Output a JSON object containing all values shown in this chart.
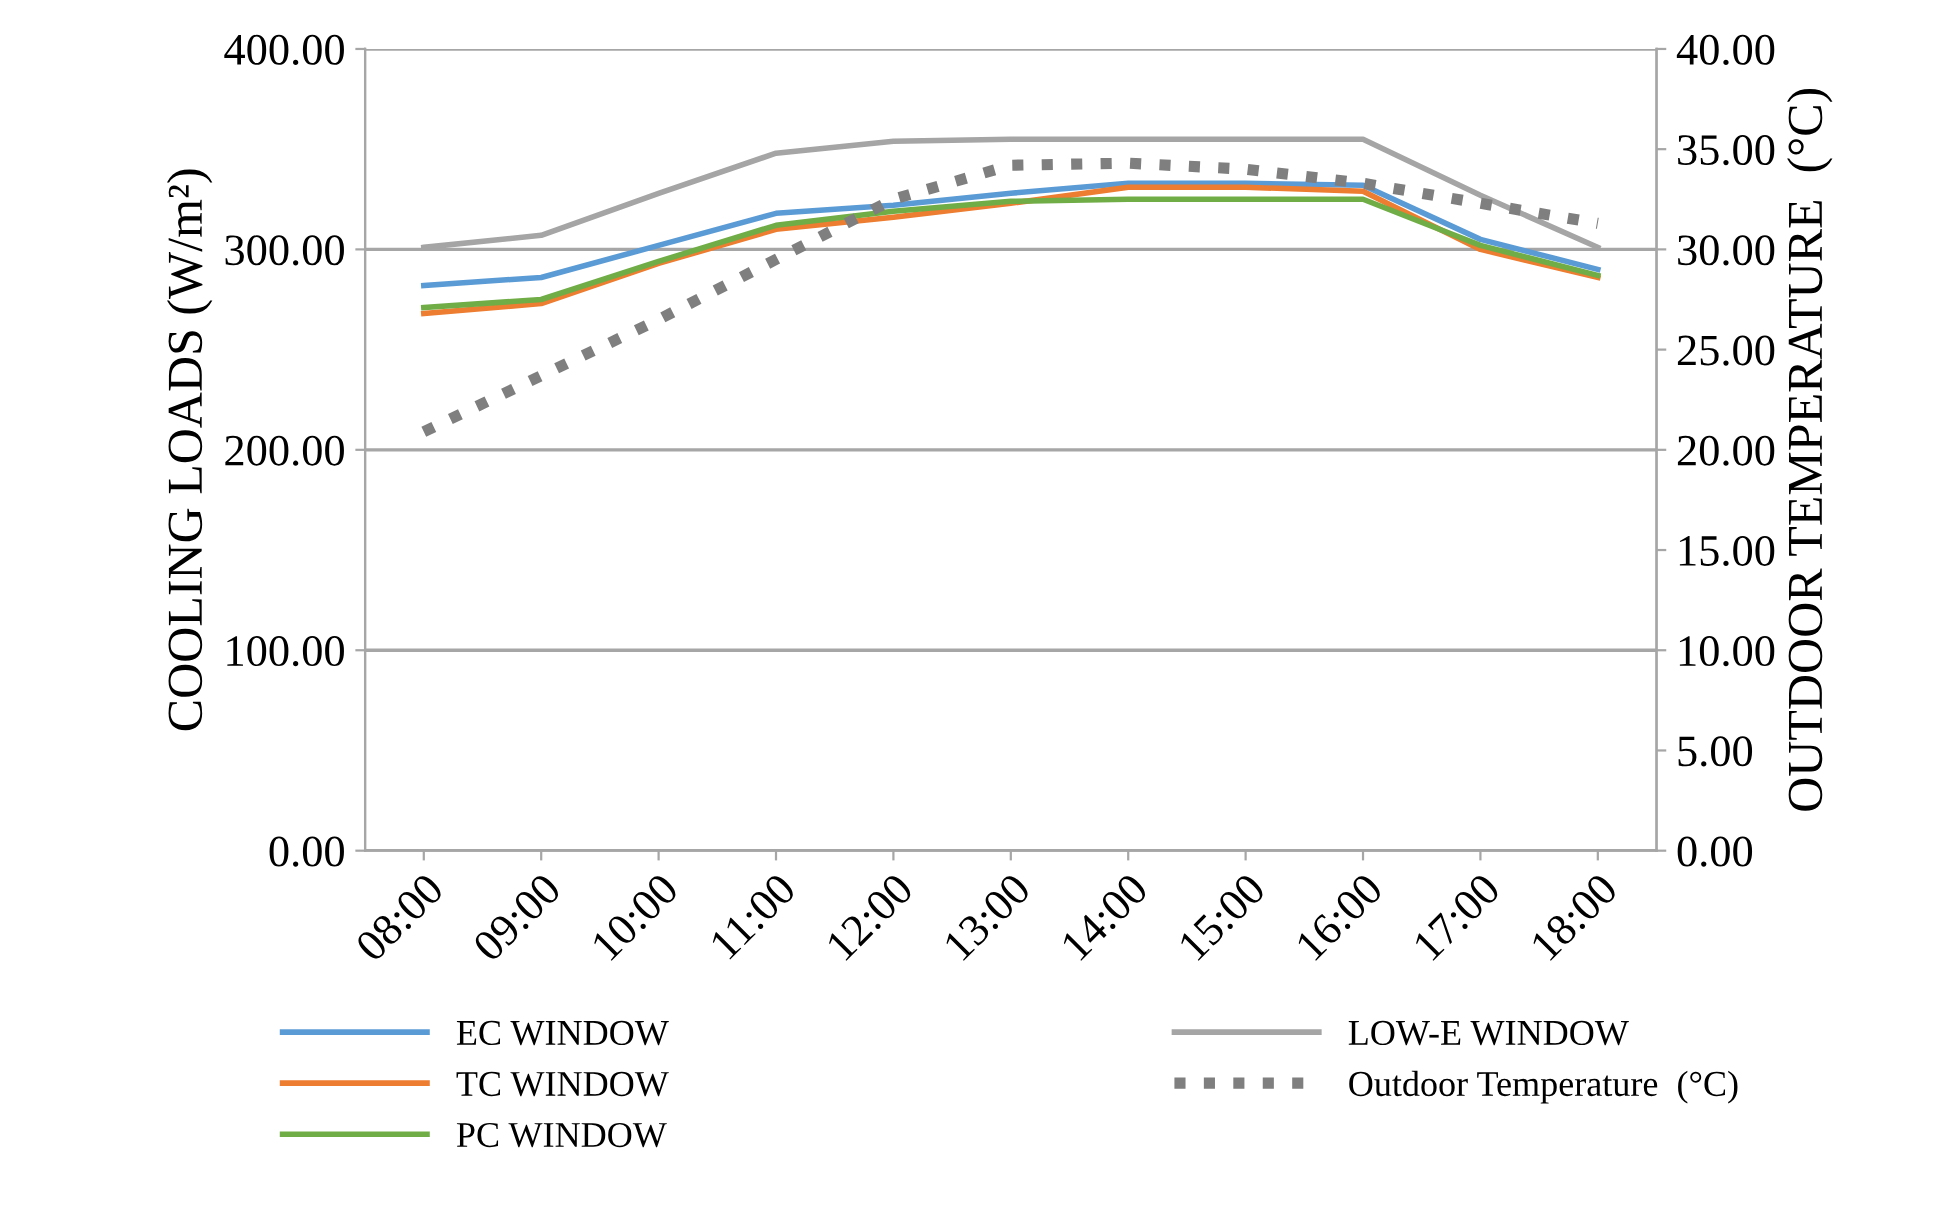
{
  "chart_data": {
    "type": "line",
    "ylabel": "COOLING LOADS (W/m²)",
    "y2label": "OUTDOOR TEMPERATURE  (°C)",
    "categories": [
      "08:00",
      "09:00",
      "10:00",
      "11:00",
      "12:00",
      "13:00",
      "14:00",
      "15:00",
      "16:00",
      "17:00",
      "18:00"
    ],
    "series": [
      {
        "name": "EC WINDOW",
        "color": "#5b9bd5",
        "values": [
          282,
          286,
          302,
          318,
          322,
          328,
          333,
          333,
          332,
          305,
          290
        ]
      },
      {
        "name": "TC WINDOW",
        "color": "#ed7d31",
        "values": [
          268,
          273,
          293,
          310,
          316,
          323,
          331,
          331,
          329,
          300,
          286
        ]
      },
      {
        "name": "PC WINDOW",
        "color": "#70ad47",
        "values": [
          271,
          275,
          294,
          312,
          319,
          324,
          325,
          325,
          325,
          302,
          287
        ]
      },
      {
        "name": "LOW-E WINDOW",
        "color": "#a5a5a5",
        "values": [
          301,
          307,
          328,
          348,
          354,
          355,
          355,
          355,
          355,
          327,
          301
        ]
      },
      {
        "name": "Outdoor Temperature  (°C)",
        "color": "#7f7f7f",
        "axis": "y2",
        "line_style": "dotted",
        "values": [
          20.9,
          23.7,
          26.5,
          29.5,
          32.5,
          34.2,
          34.3,
          34.0,
          33.3,
          32.3,
          31.3
        ]
      }
    ],
    "ylim": [
      0,
      400
    ],
    "yticks": [
      {
        "value": 0,
        "label": "0.00"
      },
      {
        "value": 100,
        "label": "100.00"
      },
      {
        "value": 200,
        "label": "200.00"
      },
      {
        "value": 300,
        "label": "300.00"
      },
      {
        "value": 400,
        "label": "400.00"
      }
    ],
    "y2lim": [
      0,
      40
    ],
    "y2ticks": [
      {
        "value": 0,
        "label": "0.00"
      },
      {
        "value": 5,
        "label": "5.00"
      },
      {
        "value": 10,
        "label": "10.00"
      },
      {
        "value": 15,
        "label": "15.00"
      },
      {
        "value": 20,
        "label": "20.00"
      },
      {
        "value": 25,
        "label": "25.00"
      },
      {
        "value": 30,
        "label": "30.00"
      },
      {
        "value": 35,
        "label": "35.00"
      },
      {
        "value": 40,
        "label": "40.00"
      }
    ],
    "grid": "y",
    "legend": "bottom",
    "line_style": "solid"
  }
}
